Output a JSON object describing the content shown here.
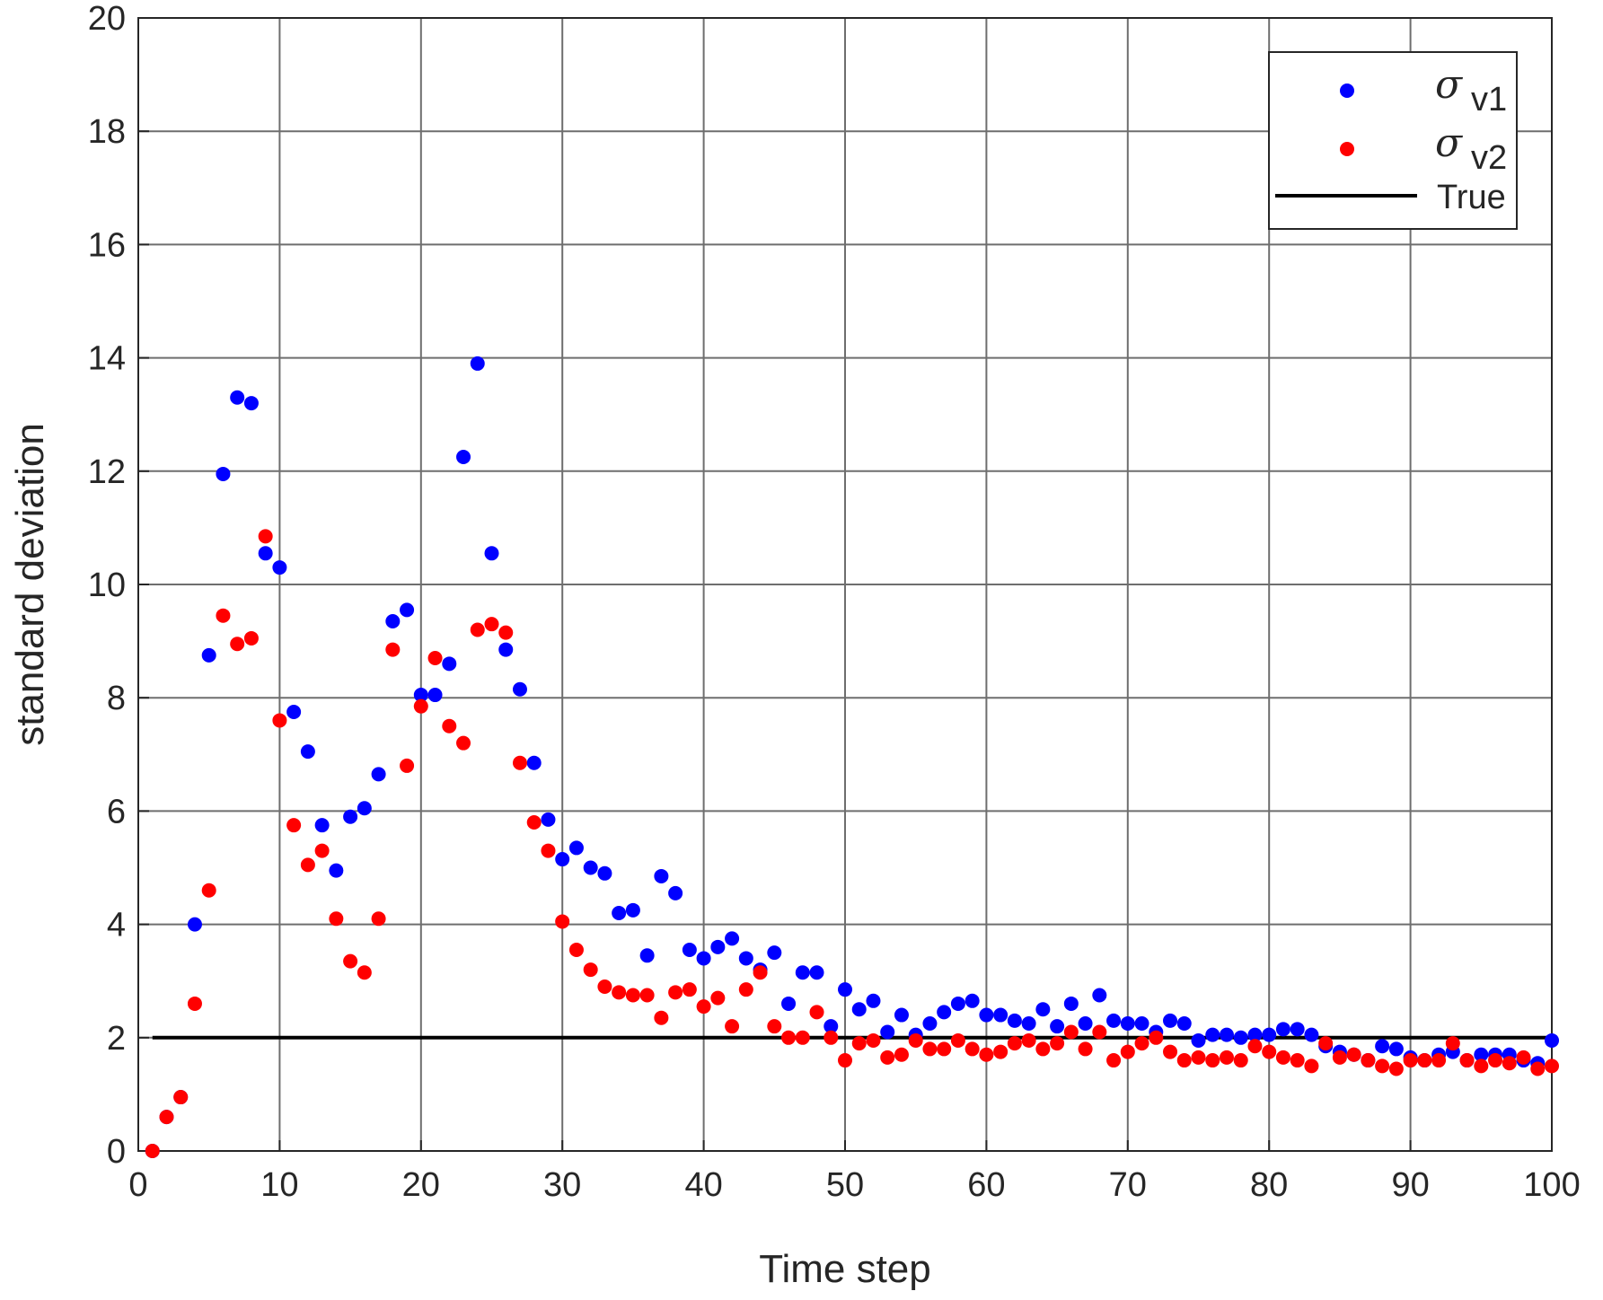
{
  "chart_data": {
    "type": "scatter",
    "xlabel": "Time step",
    "ylabel": "standard deviation",
    "xlim": [
      0,
      100
    ],
    "ylim": [
      0,
      20
    ],
    "xticks": [
      0,
      10,
      20,
      30,
      40,
      50,
      60,
      70,
      80,
      90,
      100
    ],
    "yticks": [
      0,
      2,
      4,
      6,
      8,
      10,
      12,
      14,
      16,
      18,
      20
    ],
    "grid": true,
    "legend_position": "top-right",
    "series": [
      {
        "name": "σ v1",
        "legend_symbol": "σ",
        "legend_subscript": "v1",
        "color": "#0000ff",
        "x": [
          1,
          2,
          3,
          4,
          5,
          6,
          7,
          8,
          9,
          10,
          11,
          12,
          13,
          14,
          15,
          16,
          17,
          18,
          19,
          20,
          21,
          22,
          23,
          24,
          25,
          26,
          27,
          28,
          29,
          30,
          31,
          32,
          33,
          34,
          35,
          36,
          37,
          38,
          39,
          40,
          41,
          42,
          43,
          44,
          45,
          46,
          47,
          48,
          49,
          50,
          51,
          52,
          53,
          54,
          55,
          56,
          57,
          58,
          59,
          60,
          61,
          62,
          63,
          64,
          65,
          66,
          67,
          68,
          69,
          70,
          71,
          72,
          73,
          74,
          75,
          76,
          77,
          78,
          79,
          80,
          81,
          82,
          83,
          84,
          85,
          86,
          87,
          88,
          89,
          90,
          91,
          92,
          93,
          94,
          95,
          96,
          97,
          98,
          99,
          100
        ],
        "y": [
          0,
          0.6,
          0.95,
          4.0,
          8.75,
          11.95,
          13.3,
          13.2,
          10.55,
          10.3,
          7.75,
          7.05,
          5.75,
          4.95,
          5.9,
          6.05,
          6.65,
          9.35,
          9.55,
          8.05,
          8.05,
          8.6,
          12.25,
          13.9,
          10.55,
          8.85,
          8.15,
          6.85,
          5.85,
          5.15,
          5.35,
          5.0,
          4.9,
          4.2,
          4.25,
          3.45,
          4.85,
          4.55,
          3.55,
          3.4,
          3.6,
          3.75,
          3.4,
          3.2,
          3.5,
          2.6,
          3.15,
          3.15,
          2.2,
          2.85,
          2.5,
          2.65,
          2.1,
          2.4,
          2.05,
          2.25,
          2.45,
          2.6,
          2.65,
          2.4,
          2.4,
          2.3,
          2.25,
          2.5,
          2.2,
          2.6,
          2.25,
          2.75,
          2.3,
          2.25,
          2.25,
          2.1,
          2.3,
          2.25,
          1.95,
          2.05,
          2.05,
          2.0,
          2.05,
          2.05,
          2.15,
          2.15,
          2.05,
          1.85,
          1.75,
          1.7,
          1.6,
          1.85,
          1.8,
          1.65,
          1.6,
          1.7,
          1.75,
          1.6,
          1.7,
          1.7,
          1.7,
          1.6,
          1.55,
          1.95
        ]
      },
      {
        "name": "σ v2",
        "legend_symbol": "σ",
        "legend_subscript": "v2",
        "color": "#ff0000",
        "x": [
          1,
          2,
          3,
          4,
          5,
          6,
          7,
          8,
          9,
          10,
          11,
          12,
          13,
          14,
          15,
          16,
          17,
          18,
          19,
          20,
          21,
          22,
          23,
          24,
          25,
          26,
          27,
          28,
          29,
          30,
          31,
          32,
          33,
          34,
          35,
          36,
          37,
          38,
          39,
          40,
          41,
          42,
          43,
          44,
          45,
          46,
          47,
          48,
          49,
          50,
          51,
          52,
          53,
          54,
          55,
          56,
          57,
          58,
          59,
          60,
          61,
          62,
          63,
          64,
          65,
          66,
          67,
          68,
          69,
          70,
          71,
          72,
          73,
          74,
          75,
          76,
          77,
          78,
          79,
          80,
          81,
          82,
          83,
          84,
          85,
          86,
          87,
          88,
          89,
          90,
          91,
          92,
          93,
          94,
          95,
          96,
          97,
          98,
          99,
          100
        ],
        "y": [
          0,
          0.6,
          0.95,
          2.6,
          4.6,
          9.45,
          8.95,
          9.05,
          10.85,
          7.6,
          5.75,
          5.05,
          5.3,
          4.1,
          3.35,
          3.15,
          4.1,
          8.85,
          6.8,
          7.85,
          8.7,
          7.5,
          7.2,
          9.2,
          9.3,
          9.15,
          6.85,
          5.8,
          5.3,
          4.05,
          3.55,
          3.2,
          2.9,
          2.8,
          2.75,
          2.75,
          2.35,
          2.8,
          2.85,
          2.55,
          2.7,
          2.2,
          2.85,
          3.15,
          2.2,
          2.0,
          2.0,
          2.45,
          2.0,
          1.6,
          1.9,
          1.95,
          1.65,
          1.7,
          1.95,
          1.8,
          1.8,
          1.95,
          1.8,
          1.7,
          1.75,
          1.9,
          1.95,
          1.8,
          1.9,
          2.1,
          1.8,
          2.1,
          1.6,
          1.75,
          1.9,
          2.0,
          1.75,
          1.6,
          1.65,
          1.6,
          1.65,
          1.6,
          1.85,
          1.75,
          1.65,
          1.6,
          1.5,
          1.9,
          1.65,
          1.7,
          1.6,
          1.5,
          1.45,
          1.6,
          1.6,
          1.6,
          1.9,
          1.6,
          1.5,
          1.6,
          1.55,
          1.65,
          1.45,
          1.5
        ]
      }
    ],
    "reference_line": {
      "name": "True",
      "label": "True",
      "y": 2,
      "color": "#000000"
    }
  }
}
